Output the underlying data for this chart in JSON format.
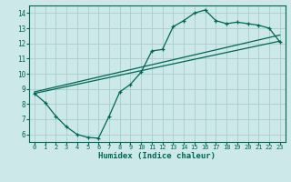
{
  "xlabel": "Humidex (Indice chaleur)",
  "background_color": "#cce8e8",
  "grid_color": "#aacccc",
  "line_color": "#006655",
  "xlim": [
    -0.5,
    23.5
  ],
  "ylim": [
    5.5,
    14.5
  ],
  "xticks": [
    0,
    1,
    2,
    3,
    4,
    5,
    6,
    7,
    8,
    9,
    10,
    11,
    12,
    13,
    14,
    15,
    16,
    17,
    18,
    19,
    20,
    21,
    22,
    23
  ],
  "yticks": [
    6,
    7,
    8,
    9,
    10,
    11,
    12,
    13,
    14
  ],
  "line1_x": [
    0,
    1,
    2,
    3,
    4,
    5,
    6,
    7,
    8,
    9,
    10,
    11,
    12,
    13,
    14,
    15,
    16,
    17,
    18,
    19,
    20,
    21,
    22,
    23
  ],
  "line1_y": [
    8.7,
    8.1,
    7.2,
    6.5,
    6.0,
    5.8,
    5.75,
    7.2,
    8.8,
    9.3,
    10.1,
    11.5,
    11.6,
    13.1,
    13.5,
    14.0,
    14.2,
    13.5,
    13.3,
    13.4,
    13.3,
    13.2,
    13.0,
    12.1
  ],
  "line2_x": [
    0,
    23
  ],
  "line2_y": [
    8.7,
    12.15
  ],
  "line3_x": [
    0,
    23
  ],
  "line3_y": [
    8.8,
    12.55
  ]
}
